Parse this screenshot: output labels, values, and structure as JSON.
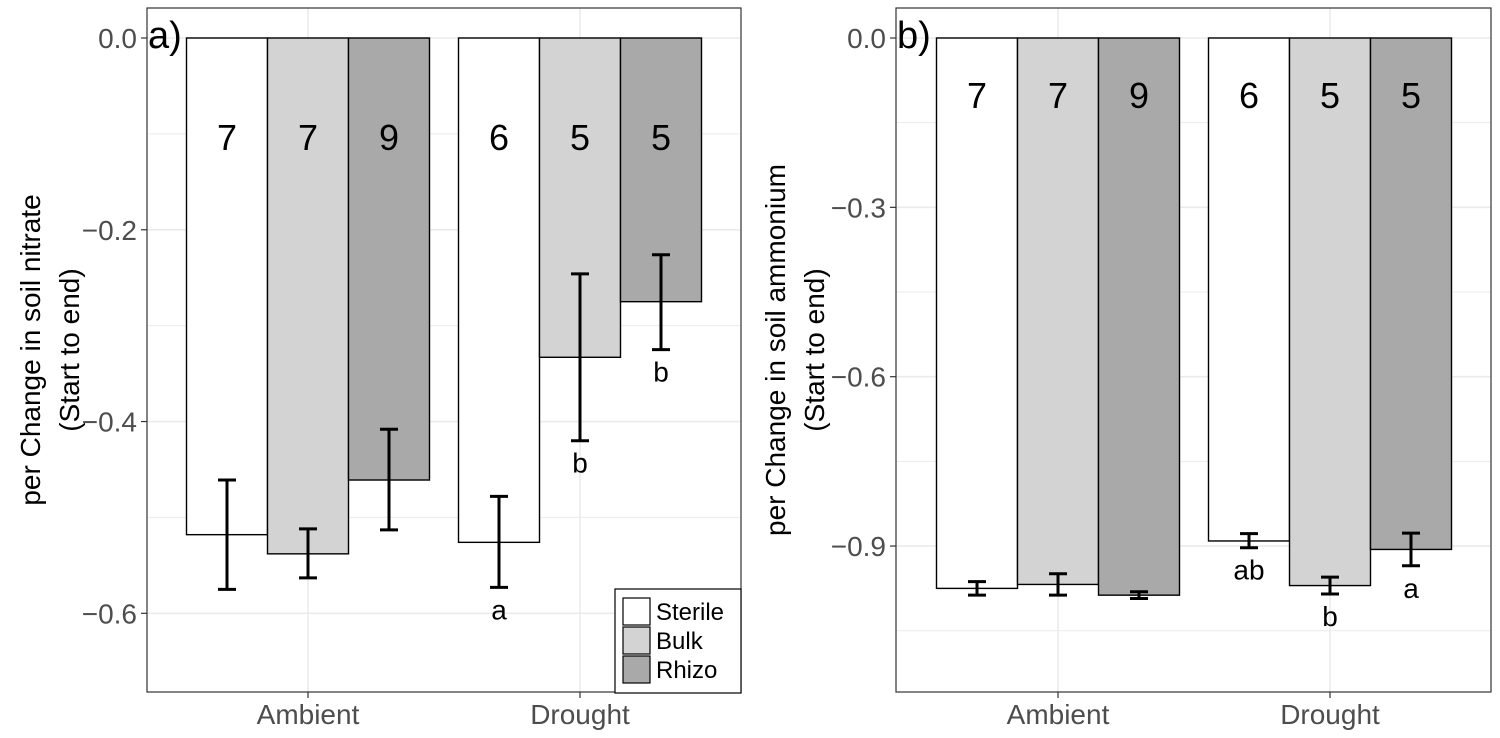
{
  "chart_data": [
    {
      "type": "bar",
      "panel_tag": "a)",
      "ylabel_line1": "per Change in soil nitrate",
      "ylabel_line2": "(Start to end)",
      "xlabel": "",
      "categories": [
        "Ambient",
        "Drought"
      ],
      "ylim": [
        -0.68,
        0.0
      ],
      "yticks": [
        0.0,
        -0.2,
        -0.4,
        -0.6
      ],
      "ytick_labels": [
        "0.0",
        "−0.2",
        "−0.4",
        "−0.6"
      ],
      "grid": true,
      "legend_position": "bottom-right",
      "series": [
        {
          "name": "Sterile",
          "color": "#ffffff",
          "values": [
            -0.518,
            -0.526
          ],
          "err_low": [
            -0.575,
            -0.573
          ],
          "err_high": [
            -0.461,
            -0.478
          ],
          "n": [
            "7",
            "6"
          ],
          "sig": [
            "",
            "a"
          ]
        },
        {
          "name": "Bulk",
          "color": "#d3d3d3",
          "values": [
            -0.538,
            -0.333
          ],
          "err_low": [
            -0.563,
            -0.42
          ],
          "err_high": [
            -0.512,
            -0.246
          ],
          "n": [
            "7",
            "5"
          ],
          "sig": [
            "",
            "b"
          ]
        },
        {
          "name": "Rhizo",
          "color": "#a9a9a9",
          "values": [
            -0.461,
            -0.275
          ],
          "err_low": [
            -0.513,
            -0.325
          ],
          "err_high": [
            -0.408,
            -0.226
          ],
          "n": [
            "9",
            "5"
          ],
          "sig": [
            "",
            "b"
          ]
        }
      ]
    },
    {
      "type": "bar",
      "panel_tag": "b)",
      "ylabel_line1": "per Change in soil ammonium",
      "ylabel_line2": "(Start to end)",
      "xlabel": "",
      "categories": [
        "Ambient",
        "Drought"
      ],
      "ylim": [
        -1.155,
        0.0
      ],
      "yticks": [
        0.0,
        -0.3,
        -0.6,
        -0.9
      ],
      "ytick_labels": [
        "0.0",
        "−0.3",
        "−0.6",
        "−0.9"
      ],
      "grid": true,
      "series": [
        {
          "name": "Sterile",
          "color": "#ffffff",
          "values": [
            -0.975,
            -0.891
          ],
          "err_low": [
            -0.987,
            -0.903
          ],
          "err_high": [
            -0.963,
            -0.878
          ],
          "n": [
            "7",
            "6"
          ],
          "sig": [
            "",
            "ab"
          ]
        },
        {
          "name": "Bulk",
          "color": "#d3d3d3",
          "values": [
            -0.968,
            -0.97
          ],
          "err_low": [
            -0.987,
            -0.985
          ],
          "err_high": [
            -0.949,
            -0.955
          ],
          "n": [
            "7",
            "5"
          ],
          "sig": [
            "",
            "b"
          ]
        },
        {
          "name": "Rhizo",
          "color": "#a9a9a9",
          "values": [
            -0.987,
            -0.906
          ],
          "err_low": [
            -0.993,
            -0.935
          ],
          "err_high": [
            -0.981,
            -0.877
          ],
          "n": [
            "9",
            "5"
          ],
          "sig": [
            "",
            "a"
          ]
        }
      ]
    }
  ]
}
